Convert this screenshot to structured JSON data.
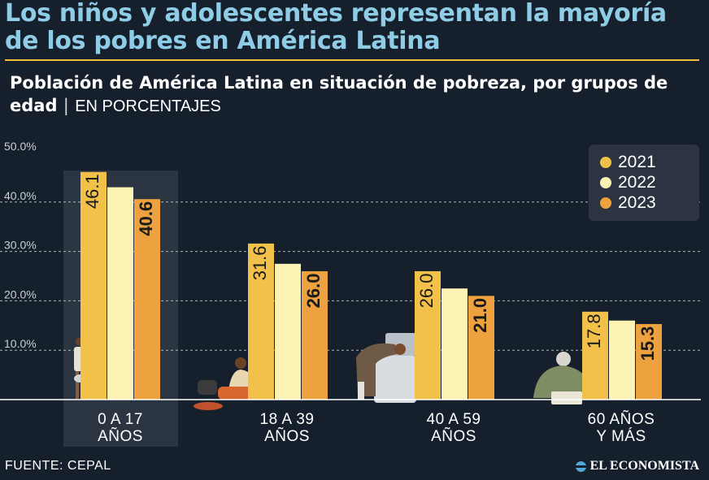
{
  "headline": "Los niños y adolescentes representan la mayoría de los pobres en América Latina",
  "subtitle": {
    "main": "Población de América Latina en situación de pobreza, por grupos de edad",
    "separator": "|",
    "unit": "EN PORCENTAJES"
  },
  "source": "FUENTE: CEPAL",
  "brand": "EL ECONOMISTA",
  "colors": {
    "background": "#15202c",
    "headline": "#8fcde6",
    "rule": "#f0bf3b",
    "highlight_column": "#2b3541",
    "legend_box": "#2b3440"
  },
  "legend": {
    "position": "top-right",
    "items": [
      {
        "label": "2021",
        "color": "#f2c14a"
      },
      {
        "label": "2022",
        "color": "#fcf3b4"
      },
      {
        "label": "2023",
        "color": "#eea13f"
      }
    ]
  },
  "chart_data": {
    "type": "bar",
    "categories": [
      [
        "0 A 17",
        "AÑOS"
      ],
      [
        "18 A 39",
        "AÑOS"
      ],
      [
        "40 A 59",
        "AÑOS"
      ],
      [
        "60 AÑOS",
        "Y MÁS"
      ]
    ],
    "series": [
      {
        "name": "2021",
        "values": [
          46.1,
          31.6,
          26.0,
          17.8
        ],
        "labels": [
          "46.1",
          "31.6",
          "26.0",
          "17.8"
        ]
      },
      {
        "name": "2022",
        "values": [
          43.0,
          27.5,
          22.5,
          16.0
        ],
        "labels": [
          "",
          "",
          "",
          ""
        ]
      },
      {
        "name": "2023",
        "values": [
          40.6,
          26.0,
          21.0,
          15.3
        ],
        "labels": [
          "40.6",
          "26.0",
          "21.0",
          "15.3"
        ]
      }
    ],
    "yticks": [
      10,
      20,
      30,
      40,
      50
    ],
    "ytick_labels": [
      "10.0%",
      "20.0%",
      "30.0%",
      "40.0%",
      "50.0%"
    ],
    "ylim": [
      0,
      50
    ],
    "highlighted_category": 0,
    "grid": "dashed horizontal",
    "illustrations": [
      "child-figure-icon",
      "woman-cooking-icon",
      "man-working-icon",
      "elderly-woman-icon"
    ]
  }
}
